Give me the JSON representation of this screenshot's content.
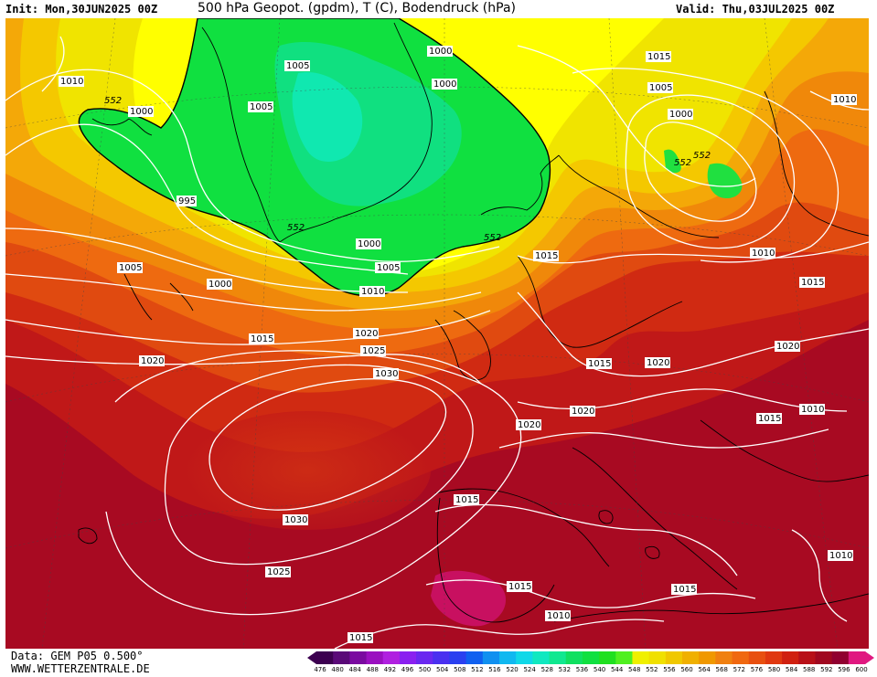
{
  "header": {
    "init": "Init: Mon,30JUN2025 00Z",
    "title": "500 hPa Geopot. (gpdm), T (C), Bodendruck (hPa)",
    "valid": "Valid: Thu,03JUL2025 00Z"
  },
  "footer": {
    "data_source": "Data: GEM P05 0.500°",
    "website": "WWW.WETTERZENTRALE.DE"
  },
  "legend": {
    "values": [
      "476",
      "480",
      "484",
      "488",
      "492",
      "496",
      "500",
      "504",
      "508",
      "512",
      "516",
      "520",
      "524",
      "528",
      "532",
      "536",
      "540",
      "544",
      "548",
      "552",
      "556",
      "560",
      "564",
      "568",
      "572",
      "576",
      "580",
      "584",
      "588",
      "592",
      "596",
      "600"
    ],
    "colors": [
      "#3c0050",
      "#5a0a78",
      "#7a0aa0",
      "#9a10c0",
      "#b020e0",
      "#8a20f0",
      "#6a28f0",
      "#4a30f0",
      "#2a40f0",
      "#1060f0",
      "#1090f0",
      "#10b8f0",
      "#10d8e8",
      "#10e8c0",
      "#10e890",
      "#10e060",
      "#10e040",
      "#20e020",
      "#50f020",
      "#f0f000",
      "#f0e000",
      "#f0c800",
      "#f0b000",
      "#f09800",
      "#f08010",
      "#f06810",
      "#e85010",
      "#e03810",
      "#d02010",
      "#b81018",
      "#a00820",
      "#900030",
      "#e01880"
    ]
  },
  "map": {
    "geopotential_label": "552",
    "isobars": [
      {
        "label": "1010"
      },
      {
        "label": "552"
      },
      {
        "label": "1000"
      },
      {
        "label": "1005"
      },
      {
        "label": "1000"
      },
      {
        "label": "1005"
      },
      {
        "label": "1000"
      },
      {
        "label": "1015"
      },
      {
        "label": "1005"
      },
      {
        "label": "1010"
      },
      {
        "label": "1000"
      },
      {
        "label": "552"
      },
      {
        "label": "552"
      },
      {
        "label": "995"
      },
      {
        "label": "552"
      },
      {
        "label": "1000"
      },
      {
        "label": "552"
      },
      {
        "label": "1015"
      },
      {
        "label": "1010"
      },
      {
        "label": "1005"
      },
      {
        "label": "1000"
      },
      {
        "label": "1005"
      },
      {
        "label": "1010"
      },
      {
        "label": "1015"
      },
      {
        "label": "1020"
      },
      {
        "label": "1015"
      },
      {
        "label": "1025"
      },
      {
        "label": "1020"
      },
      {
        "label": "1020"
      },
      {
        "label": "1030"
      },
      {
        "label": "1015"
      },
      {
        "label": "1020"
      },
      {
        "label": "1020"
      },
      {
        "label": "1015"
      },
      {
        "label": "1010"
      },
      {
        "label": "1020"
      },
      {
        "label": "1015"
      },
      {
        "label": "1030"
      },
      {
        "label": "1025"
      },
      {
        "label": "1010"
      },
      {
        "label": "1015"
      },
      {
        "label": "1015"
      },
      {
        "label": "1010"
      },
      {
        "label": "1015"
      }
    ]
  }
}
